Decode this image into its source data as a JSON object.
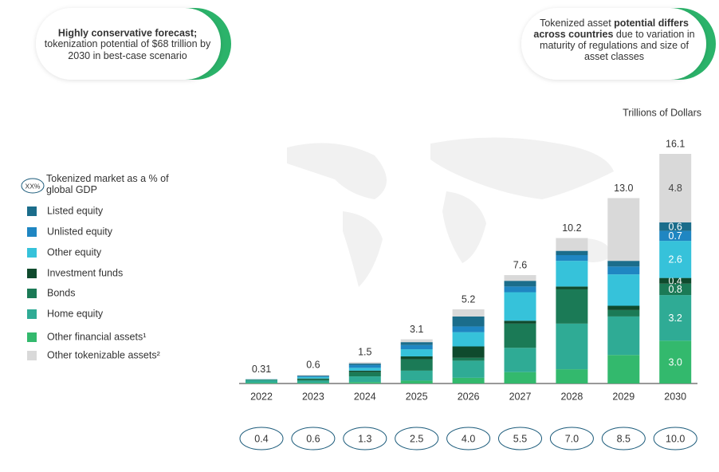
{
  "chart_data": {
    "type": "stacked-bar",
    "callout_left": {
      "bold": "Highly conservative forecast;",
      "text": "tokenization potential of $68 trillion by 2030 in best-case scenario"
    },
    "callout_right": {
      "text_1": "Tokenized asset ",
      "bold": "potential differs across countries",
      "text_2": " due to variation in maturity of regulations and size of asset classes"
    },
    "unit_label": "Trillions of Dollars",
    "gdp_legend": {
      "symbol": "XX%",
      "label": "Tokenized market as a % of global GDP"
    },
    "categories": [
      "2022",
      "2023",
      "2024",
      "2025",
      "2026",
      "2027",
      "2028",
      "2029",
      "2030"
    ],
    "series": [
      {
        "name": "Listed equity",
        "color": "#1b6d8b",
        "values": [
          0.005,
          0.05,
          0.1,
          0.2,
          0.7,
          0.4,
          0.3,
          0.4,
          0.6
        ]
      },
      {
        "name": "Unlisted equity",
        "color": "#1f86c2",
        "values": [
          0.01,
          0.05,
          0.2,
          0.3,
          0.4,
          0.4,
          0.4,
          0.55,
          0.7
        ]
      },
      {
        "name": "Other equity",
        "color": "#36c2da",
        "values": [
          0.01,
          0.1,
          0.2,
          0.5,
          1.0,
          2.0,
          1.8,
          2.2,
          2.6
        ]
      },
      {
        "name": "Investment funds",
        "color": "#0f4a2d",
        "values": [
          0.01,
          0.05,
          0.1,
          0.2,
          0.8,
          0.2,
          0.2,
          0.3,
          0.4
        ]
      },
      {
        "name": "Bonds",
        "color": "#1b7a56",
        "values": [
          0.02,
          0.1,
          0.3,
          0.8,
          0.2,
          1.7,
          2.4,
          0.45,
          0.8
        ]
      },
      {
        "name": "Home equity",
        "color": "#2fab95",
        "values": [
          0.2,
          0.15,
          0.4,
          0.7,
          1.2,
          1.7,
          3.2,
          2.7,
          3.2
        ]
      },
      {
        "name": "Other financial assets¹",
        "color": "#33b96d",
        "values": [
          0.05,
          0.05,
          0.1,
          0.2,
          0.4,
          0.8,
          1.0,
          2.0,
          3
        ],
        "value_labels": [
          null,
          null,
          null,
          null,
          null,
          null,
          null,
          null,
          "3.0"
        ]
      },
      {
        "name": "Other tokenizable assets²",
        "color": "#d9d9d9",
        "values": [
          0.005,
          0.05,
          0.1,
          0.2,
          0.5,
          0.4,
          0.9,
          4.4,
          4.8
        ]
      }
    ],
    "labeled_category": 8,
    "totals": [
      0.31,
      0.6,
      1.5,
      3.1,
      5.2,
      7.6,
      10.2,
      13,
      16.1
    ],
    "total_labels": [
      null,
      null,
      null,
      null,
      null,
      null,
      null,
      "13.0",
      null
    ],
    "gdp_pct": [
      0.4,
      0.6,
      1.3,
      2.5,
      4,
      5.5,
      7,
      8.5,
      10
    ],
    "gdp_pct_labels": [
      null,
      null,
      null,
      null,
      "4.0",
      null,
      "7.0",
      null,
      "10.0"
    ]
  }
}
